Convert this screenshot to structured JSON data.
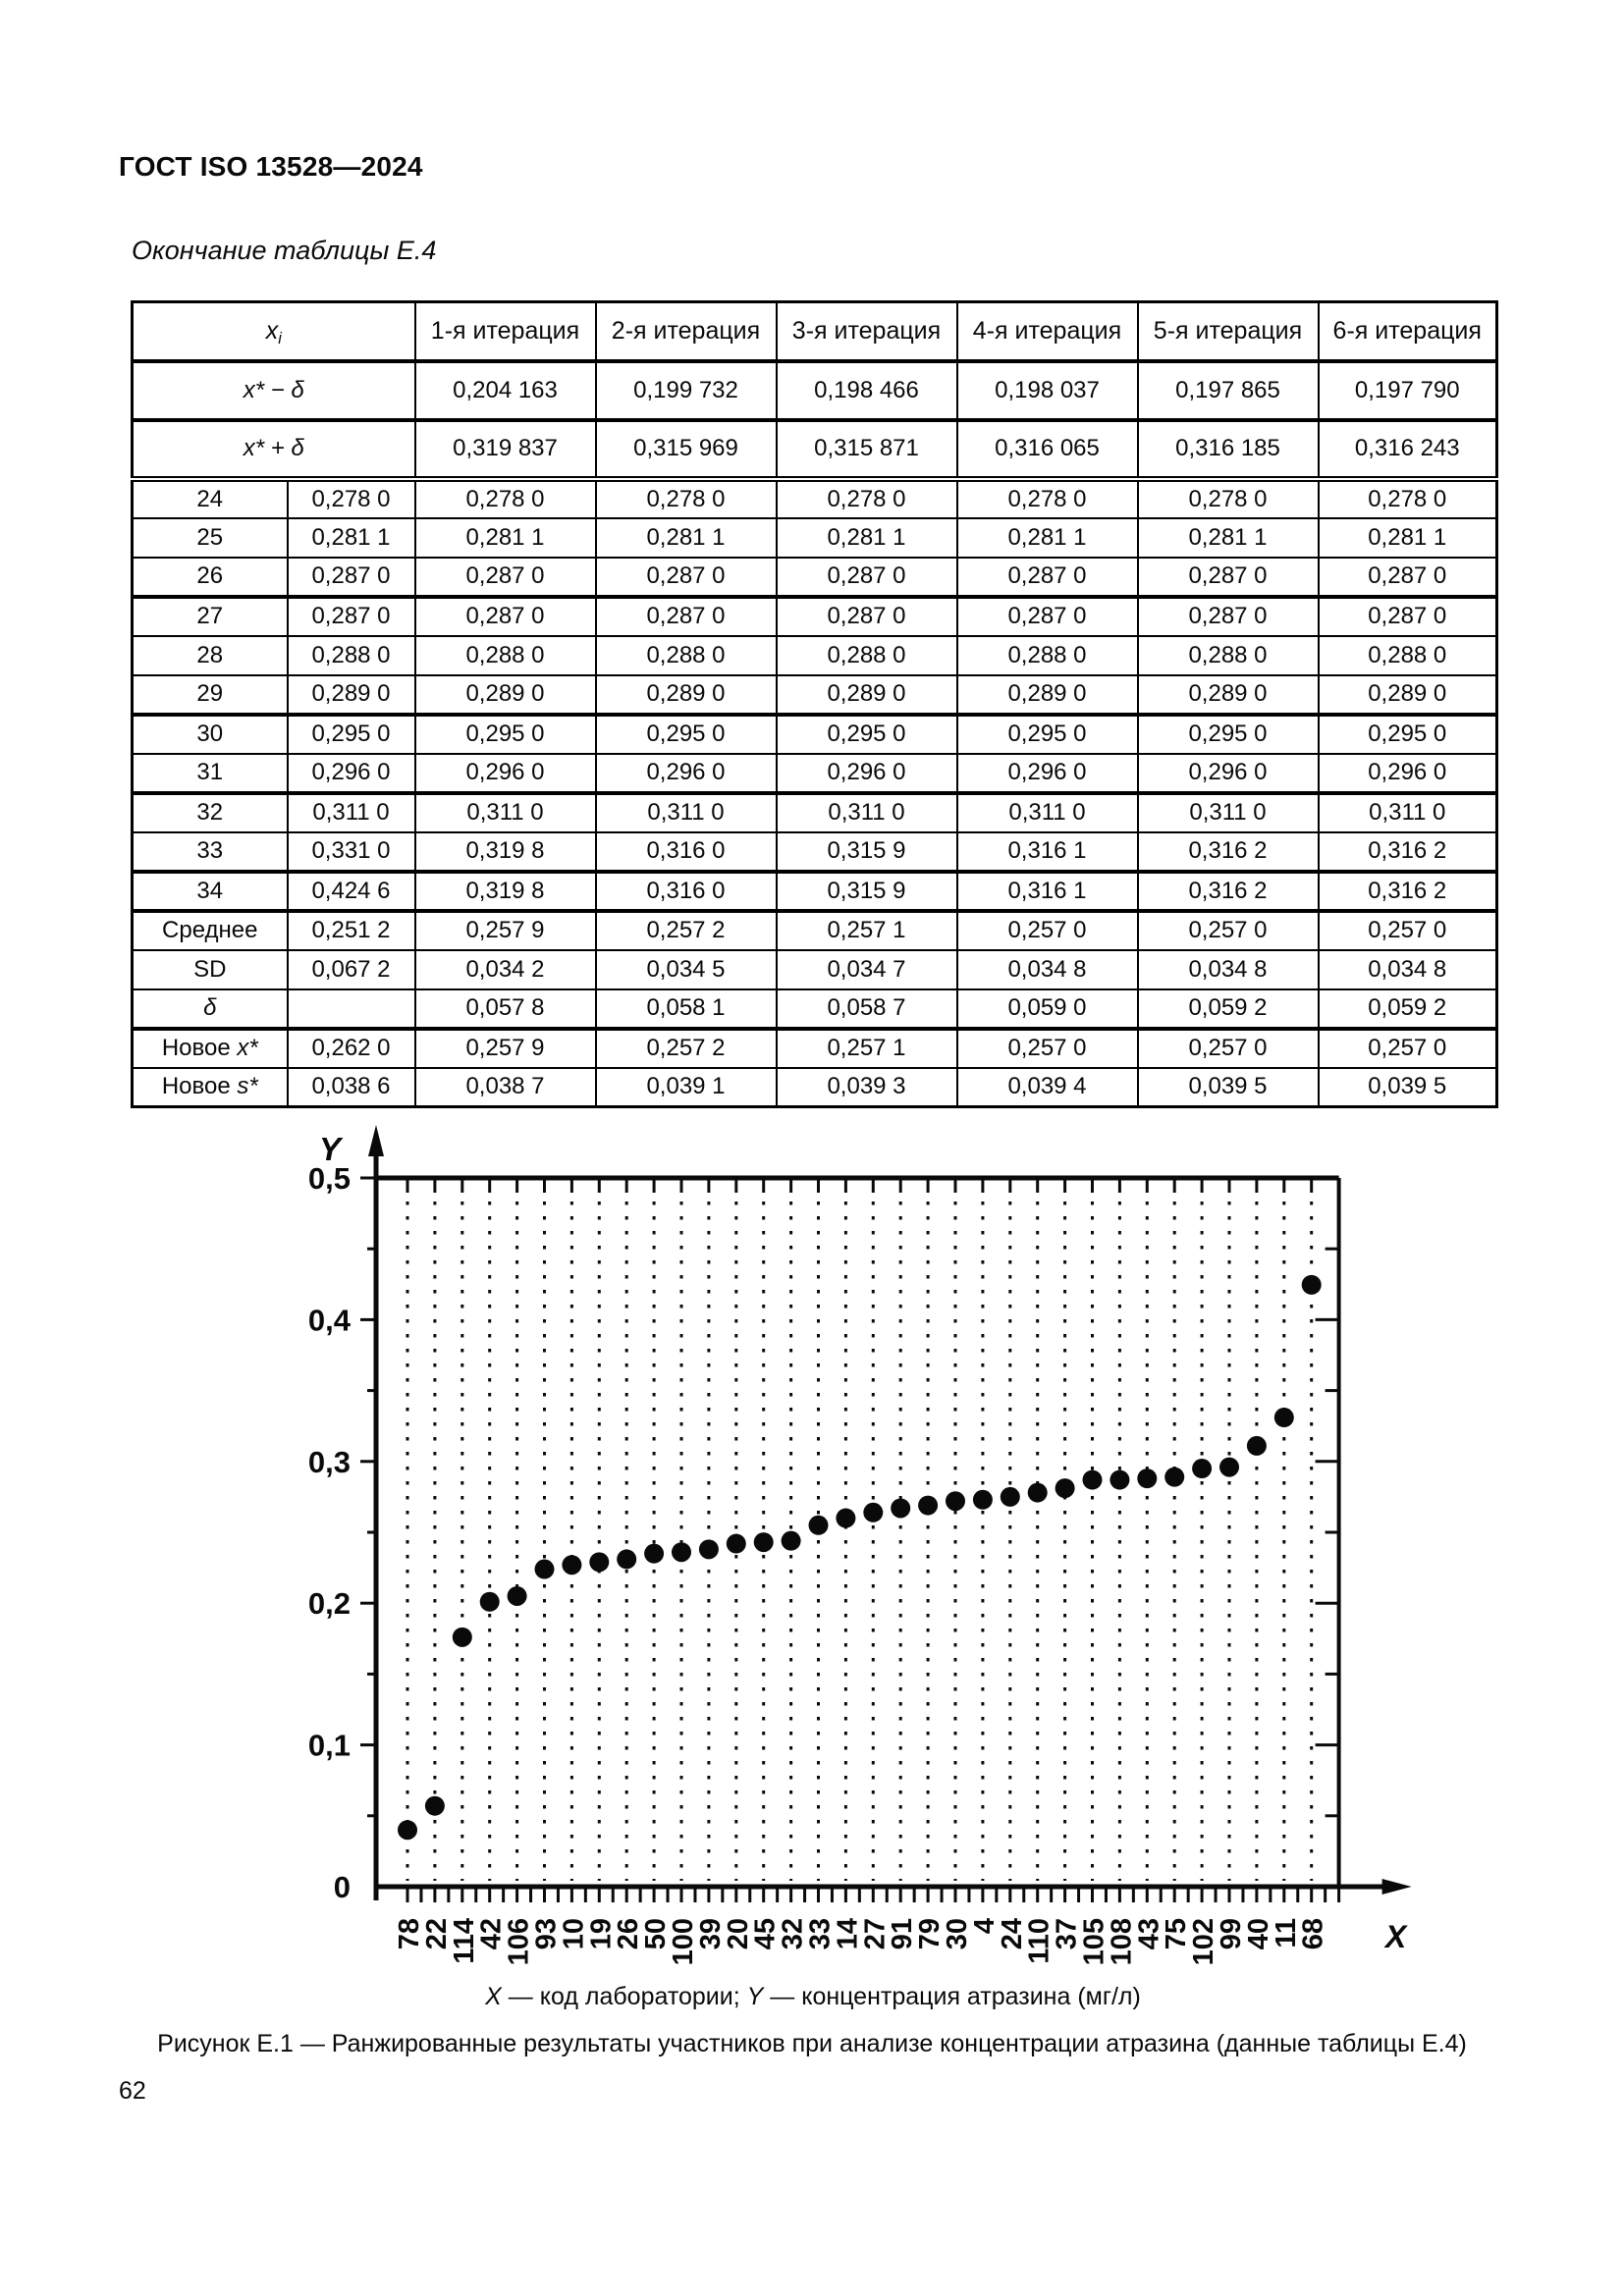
{
  "page": {
    "header": "ГОСТ ISO 13528—2024",
    "figure_caption": "Рисунок Е.1 — Ранжированные результаты участников при анализе концентрации атразина (данные таблицы Е.4)",
    "page_number": "62"
  },
  "table": {
    "continuation_label": "Окончание таблицы Е.4",
    "corner_header": [
      {
        "t": "x",
        "i": true
      },
      {
        "t": "i",
        "i": true,
        "sub": true
      }
    ],
    "iteration_headers": [
      "1-я итерация",
      "2-я итерация",
      "3-я итерация",
      "4-я итерация",
      "5-я итерация",
      "6-я итерация"
    ],
    "prelim_rows": [
      {
        "label": [
          {
            "t": "x* − δ",
            "i": true
          }
        ],
        "values": [
          "0,204 163",
          "0,199 732",
          "0,198 466",
          "0,198 037",
          "0,197 865",
          "0,197 790"
        ]
      },
      {
        "label": [
          {
            "t": "x* + δ",
            "i": true
          }
        ],
        "values": [
          "0,319 837",
          "0,315 969",
          "0,315 871",
          "0,316 065",
          "0,316 185",
          "0,316 243"
        ]
      }
    ],
    "body_rows": [
      {
        "num": "24",
        "values": [
          "0,278 0",
          "0,278 0",
          "0,278 0",
          "0,278 0",
          "0,278 0",
          "0,278 0",
          "0,278 0"
        ]
      },
      {
        "num": "25",
        "values": [
          "0,281 1",
          "0,281 1",
          "0,281 1",
          "0,281 1",
          "0,281 1",
          "0,281 1",
          "0,281 1"
        ]
      },
      {
        "num": "26",
        "values": [
          "0,287 0",
          "0,287 0",
          "0,287 0",
          "0,287 0",
          "0,287 0",
          "0,287 0",
          "0,287 0"
        ]
      },
      {
        "num": "27",
        "values": [
          "0,287 0",
          "0,287 0",
          "0,287 0",
          "0,287 0",
          "0,287 0",
          "0,287 0",
          "0,287 0"
        ]
      },
      {
        "num": "28",
        "values": [
          "0,288 0",
          "0,288 0",
          "0,288 0",
          "0,288 0",
          "0,288 0",
          "0,288 0",
          "0,288 0"
        ]
      },
      {
        "num": "29",
        "values": [
          "0,289 0",
          "0,289 0",
          "0,289 0",
          "0,289 0",
          "0,289 0",
          "0,289 0",
          "0,289 0"
        ]
      },
      {
        "num": "30",
        "values": [
          "0,295 0",
          "0,295 0",
          "0,295 0",
          "0,295 0",
          "0,295 0",
          "0,295 0",
          "0,295 0"
        ]
      },
      {
        "num": "31",
        "values": [
          "0,296 0",
          "0,296 0",
          "0,296 0",
          "0,296 0",
          "0,296 0",
          "0,296 0",
          "0,296 0"
        ]
      },
      {
        "num": "32",
        "values": [
          "0,311 0",
          "0,311 0",
          "0,311 0",
          "0,311 0",
          "0,311 0",
          "0,311 0",
          "0,311 0"
        ]
      },
      {
        "num": "33",
        "values": [
          "0,331 0",
          "0,319 8",
          "0,316 0",
          "0,315 9",
          "0,316 1",
          "0,316 2",
          "0,316 2"
        ]
      },
      {
        "num": "34",
        "values": [
          "0,424 6",
          "0,319 8",
          "0,316 0",
          "0,315 9",
          "0,316 1",
          "0,316 2",
          "0,316 2"
        ]
      }
    ],
    "stat_rows": [
      {
        "label": [
          {
            "t": "Среднее"
          }
        ],
        "values": [
          "0,251 2",
          "0,257 9",
          "0,257 2",
          "0,257 1",
          "0,257 0",
          "0,257 0",
          "0,257 0"
        ]
      },
      {
        "label": [
          {
            "t": "SD"
          }
        ],
        "values": [
          "0,067 2",
          "0,034 2",
          "0,034 5",
          "0,034 7",
          "0,034 8",
          "0,034 8",
          "0,034 8"
        ]
      },
      {
        "label": [
          {
            "t": "δ",
            "i": true
          }
        ],
        "values": [
          "",
          "0,057 8",
          "0,058 1",
          "0,058 7",
          "0,059 0",
          "0,059 2",
          "0,059 2"
        ]
      },
      {
        "label": [
          {
            "t": "Новое "
          },
          {
            "t": "x*",
            "i": true
          }
        ],
        "values": [
          "0,262 0",
          "0,257 9",
          "0,257 2",
          "0,257 1",
          "0,257 0",
          "0,257 0",
          "0,257 0"
        ]
      },
      {
        "label": [
          {
            "t": "Новое "
          },
          {
            "t": "s*",
            "i": true
          }
        ],
        "values": [
          "0,038 6",
          "0,038 7",
          "0,039 1",
          "0,039 3",
          "0,039 4",
          "0,039 5",
          "0,039 5"
        ]
      }
    ]
  },
  "chart_data": {
    "type": "scatter",
    "title": "",
    "x_axis_var": "X",
    "y_axis_var": "Y",
    "x_tick_labels": [
      "78",
      "22",
      "114",
      "42",
      "106",
      "93",
      "10",
      "19",
      "26",
      "50",
      "100",
      "39",
      "20",
      "45",
      "32",
      "33",
      "14",
      "27",
      "91",
      "79",
      "30",
      "4",
      "24",
      "110",
      "37",
      "105",
      "108",
      "43",
      "75",
      "102",
      "99",
      "40",
      "11",
      "68"
    ],
    "values": [
      0.04,
      0.057,
      0.176,
      0.201,
      0.205,
      0.224,
      0.227,
      0.229,
      0.231,
      0.235,
      0.236,
      0.238,
      0.242,
      0.243,
      0.244,
      0.255,
      0.26,
      0.264,
      0.267,
      0.269,
      0.272,
      0.273,
      0.275,
      0.278,
      0.2811,
      0.287,
      0.287,
      0.288,
      0.289,
      0.295,
      0.296,
      0.311,
      0.331,
      0.4246
    ],
    "y_ticks": [
      {
        "label": "0",
        "v": 0
      },
      {
        "label": "0,1",
        "v": 0.1
      },
      {
        "label": "0,2",
        "v": 0.2
      },
      {
        "label": "0,3",
        "v": 0.3
      },
      {
        "label": "0,4",
        "v": 0.4
      },
      {
        "label": "0,5",
        "v": 0.5
      }
    ],
    "ylim": [
      0,
      0.5
    ],
    "y_minor_step": 0.05,
    "grid": "dotted-vertical-per-point",
    "legend_segments": [
      {
        "t": "X",
        "i": true
      },
      {
        "t": " — код лаборатории; "
      },
      {
        "t": "Y",
        "i": true
      },
      {
        "t": " — концентрация атразина (мг/л)"
      }
    ]
  }
}
